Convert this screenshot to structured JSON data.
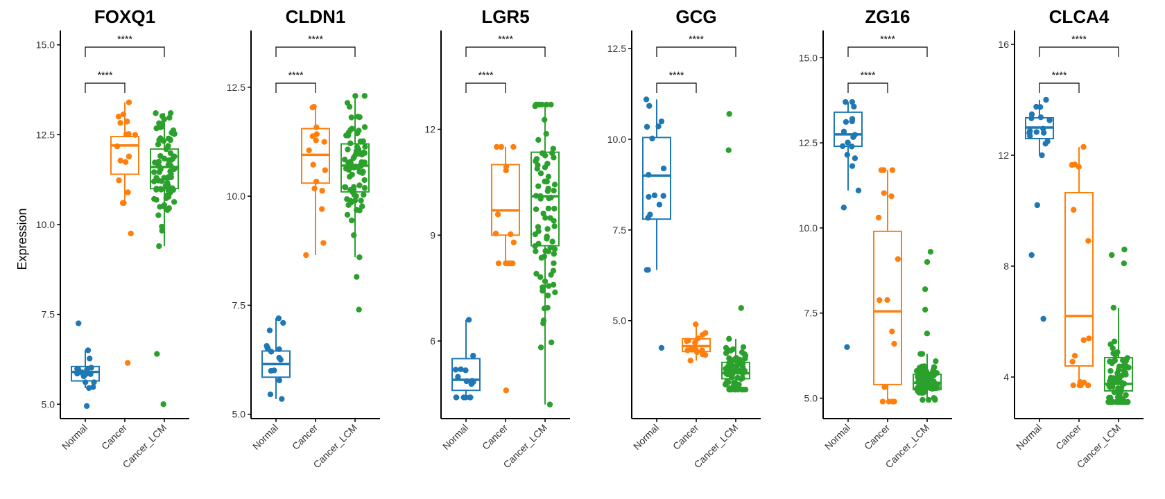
{
  "figure": {
    "ylabel": "Expression",
    "colors": {
      "Normal": "#1f77b4",
      "Cancer": "#ff7f0e",
      "Cancer_LCM": "#2ca02c"
    },
    "significance_label": "****"
  },
  "chart_data": [
    {
      "type": "box",
      "title": "FOXQ1",
      "categories": [
        "Normal",
        "Cancer",
        "Cancer_LCM"
      ],
      "ylim": [
        4.6,
        15.4
      ],
      "yticks": [
        5.0,
        7.5,
        10.0,
        12.5,
        15.0
      ],
      "tick_labels": [
        "5.0",
        "7.5",
        "10.0",
        "12.5",
        "15.0"
      ],
      "boxes": [
        {
          "q1": 5.65,
          "median": 5.9,
          "q3": 6.05,
          "whisker_low": 5.45,
          "whisker_high": 6.5
        },
        {
          "q1": 11.4,
          "median": 12.2,
          "q3": 12.45,
          "whisker_low": 10.6,
          "whisker_high": 13.4
        },
        {
          "q1": 11.0,
          "median": 11.6,
          "q3": 12.1,
          "whisker_low": 9.4,
          "whisker_high": 13.1
        }
      ],
      "outliers": [
        [
          4.95,
          7.25
        ],
        [
          6.15,
          9.75
        ],
        [
          5.0,
          6.4
        ]
      ],
      "n_points": [
        16,
        16,
        80
      ],
      "significance": [
        [
          "Normal",
          "Cancer",
          "****"
        ],
        [
          "Normal",
          "Cancer_LCM",
          "****"
        ]
      ]
    },
    {
      "type": "box",
      "title": "CLDN1",
      "categories": [
        "Normal",
        "Cancer",
        "Cancer_LCM"
      ],
      "ylim": [
        4.9,
        13.8
      ],
      "yticks": [
        5.0,
        7.5,
        10.0,
        12.5
      ],
      "tick_labels": [
        "5.0",
        "7.5",
        "10.0",
        "12.5"
      ],
      "boxes": [
        {
          "q1": 5.85,
          "median": 6.15,
          "q3": 6.45,
          "whisker_low": 5.35,
          "whisker_high": 7.2
        },
        {
          "q1": 10.3,
          "median": 10.95,
          "q3": 11.55,
          "whisker_low": 8.65,
          "whisker_high": 12.05
        },
        {
          "q1": 10.1,
          "median": 10.7,
          "q3": 11.2,
          "whisker_low": 8.6,
          "whisker_high": 12.3
        }
      ],
      "outliers": [
        [],
        [],
        [
          7.4,
          8.15
        ]
      ],
      "n_points": [
        16,
        16,
        80
      ],
      "significance": [
        [
          "Normal",
          "Cancer",
          "****"
        ],
        [
          "Normal",
          "Cancer_LCM",
          "****"
        ]
      ]
    },
    {
      "type": "box",
      "title": "LGR5",
      "categories": [
        "Normal",
        "Cancer",
        "Cancer_LCM"
      ],
      "ylim": [
        3.8,
        14.8
      ],
      "yticks": [
        6,
        9,
        12
      ],
      "tick_labels": [
        "6",
        "9",
        "12"
      ],
      "boxes": [
        {
          "q1": 4.6,
          "median": 4.9,
          "q3": 5.5,
          "whisker_low": 4.4,
          "whisker_high": 6.6
        },
        {
          "q1": 9.0,
          "median": 9.7,
          "q3": 11.0,
          "whisker_low": 8.2,
          "whisker_high": 11.5
        },
        {
          "q1": 8.7,
          "median": 10.1,
          "q3": 11.35,
          "whisker_low": 4.2,
          "whisker_high": 12.7
        }
      ],
      "outliers": [
        [],
        [
          4.6
        ],
        []
      ],
      "n_points": [
        16,
        16,
        80
      ],
      "significance": [
        [
          "Normal",
          "Cancer",
          "****"
        ],
        [
          "Normal",
          "Cancer_LCM",
          "****"
        ]
      ]
    },
    {
      "type": "box",
      "title": "GCG",
      "categories": [
        "Normal",
        "Cancer",
        "Cancer_LCM"
      ],
      "ylim": [
        2.3,
        13.0
      ],
      "yticks": [
        5.0,
        7.5,
        10.0,
        12.5
      ],
      "tick_labels": [
        "5.0",
        "7.5",
        "10.0",
        "12.5"
      ],
      "boxes": [
        {
          "q1": 7.8,
          "median": 9.0,
          "q3": 10.05,
          "whisker_low": 6.4,
          "whisker_high": 11.1
        },
        {
          "q1": 4.15,
          "median": 4.3,
          "q3": 4.5,
          "whisker_low": 3.9,
          "whisker_high": 4.9
        },
        {
          "q1": 3.4,
          "median": 3.55,
          "q3": 3.85,
          "whisker_low": 3.1,
          "whisker_high": 4.5
        }
      ],
      "outliers": [
        [
          4.25
        ],
        [],
        [
          5.35,
          9.7,
          10.7
        ]
      ],
      "n_points": [
        16,
        16,
        80
      ],
      "significance": [
        [
          "Normal",
          "Cancer",
          "****"
        ],
        [
          "Normal",
          "Cancer_LCM",
          "****"
        ]
      ]
    },
    {
      "type": "box",
      "title": "ZG16",
      "categories": [
        "Normal",
        "Cancer",
        "Cancer_LCM"
      ],
      "ylim": [
        4.4,
        15.8
      ],
      "yticks": [
        5.0,
        7.5,
        10.0,
        12.5,
        15.0
      ],
      "tick_labels": [
        "5.0",
        "7.5",
        "10.0",
        "12.5",
        "15.0"
      ],
      "boxes": [
        {
          "q1": 12.4,
          "median": 12.75,
          "q3": 13.4,
          "whisker_low": 11.1,
          "whisker_high": 13.7
        },
        {
          "q1": 5.4,
          "median": 7.55,
          "q3": 9.9,
          "whisker_low": 4.9,
          "whisker_high": 11.7
        },
        {
          "q1": 5.25,
          "median": 5.45,
          "q3": 5.7,
          "whisker_low": 4.95,
          "whisker_high": 6.3
        }
      ],
      "outliers": [
        [
          6.5,
          10.6
        ],
        [],
        [
          6.9,
          7.6,
          8.2,
          9.0,
          9.3
        ]
      ],
      "n_points": [
        16,
        16,
        80
      ],
      "significance": [
        [
          "Normal",
          "Cancer",
          "****"
        ],
        [
          "Normal",
          "Cancer_LCM",
          "****"
        ]
      ]
    },
    {
      "type": "box",
      "title": "CLCA4",
      "categories": [
        "Normal",
        "Cancer",
        "Cancer_LCM"
      ],
      "ylim": [
        2.5,
        16.5
      ],
      "yticks": [
        4,
        8,
        12,
        16
      ],
      "tick_labels": [
        "4",
        "8",
        "12",
        "16"
      ],
      "boxes": [
        {
          "q1": 12.6,
          "median": 13.0,
          "q3": 13.35,
          "whisker_low": 12.0,
          "whisker_high": 14.0
        },
        {
          "q1": 4.4,
          "median": 6.2,
          "q3": 10.65,
          "whisker_low": 3.7,
          "whisker_high": 12.3
        },
        {
          "q1": 3.5,
          "median": 3.75,
          "q3": 4.7,
          "whisker_low": 3.1,
          "whisker_high": 6.5
        }
      ],
      "outliers": [
        [
          6.1,
          8.4,
          10.2
        ],
        [],
        [
          8.1,
          8.4,
          8.6
        ]
      ],
      "n_points": [
        16,
        16,
        80
      ],
      "significance": [
        [
          "Normal",
          "Cancer",
          "****"
        ],
        [
          "Normal",
          "Cancer_LCM",
          "****"
        ]
      ]
    }
  ]
}
